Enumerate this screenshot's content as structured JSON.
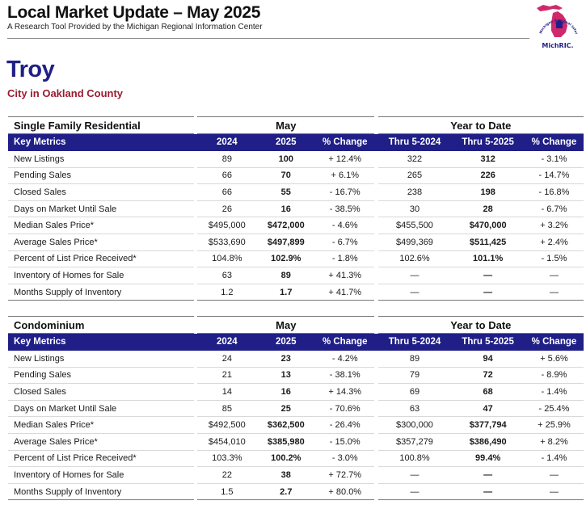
{
  "header": {
    "title": "Local Market Update – May 2025",
    "subtitle": "A Research Tool Provided by the Michigan Regional Information Center",
    "logo_text": "MichRIC.",
    "logo_arc_text": "Michigan Regional Information Center"
  },
  "location": {
    "city": "Troy",
    "county": "City in Oakland County"
  },
  "colors": {
    "header_bar": "#1f1f87",
    "county_text": "#9b1b30",
    "logo_state": "#d0296b"
  },
  "tables": [
    {
      "section": "Single Family Residential",
      "group_month": "May",
      "group_ytd": "Year to Date",
      "columns": [
        "Key Metrics",
        "2024",
        "2025",
        "% Change",
        "Thru 5-2024",
        "Thru 5-2025",
        "% Change"
      ],
      "rows": [
        [
          "New Listings",
          "89",
          "100",
          "+ 12.4%",
          "322",
          "312",
          "- 3.1%"
        ],
        [
          "Pending Sales",
          "66",
          "70",
          "+ 6.1%",
          "265",
          "226",
          "- 14.7%"
        ],
        [
          "Closed Sales",
          "66",
          "55",
          "- 16.7%",
          "238",
          "198",
          "- 16.8%"
        ],
        [
          "Days on Market Until Sale",
          "26",
          "16",
          "- 38.5%",
          "30",
          "28",
          "- 6.7%"
        ],
        [
          "Median Sales Price*",
          "$495,000",
          "$472,000",
          "- 4.6%",
          "$455,500",
          "$470,000",
          "+ 3.2%"
        ],
        [
          "Average Sales Price*",
          "$533,690",
          "$497,899",
          "- 6.7%",
          "$499,369",
          "$511,425",
          "+ 2.4%"
        ],
        [
          "Percent of List Price Received*",
          "104.8%",
          "102.9%",
          "- 1.8%",
          "102.6%",
          "101.1%",
          "- 1.5%"
        ],
        [
          "Inventory of Homes for Sale",
          "63",
          "89",
          "+ 41.3%",
          "—",
          "—",
          "—"
        ],
        [
          "Months Supply of Inventory",
          "1.2",
          "1.7",
          "+ 41.7%",
          "—",
          "—",
          "—"
        ]
      ]
    },
    {
      "section": "Condominium",
      "group_month": "May",
      "group_ytd": "Year to Date",
      "columns": [
        "Key Metrics",
        "2024",
        "2025",
        "% Change",
        "Thru 5-2024",
        "Thru 5-2025",
        "% Change"
      ],
      "rows": [
        [
          "New Listings",
          "24",
          "23",
          "- 4.2%",
          "89",
          "94",
          "+ 5.6%"
        ],
        [
          "Pending Sales",
          "21",
          "13",
          "- 38.1%",
          "79",
          "72",
          "- 8.9%"
        ],
        [
          "Closed Sales",
          "14",
          "16",
          "+ 14.3%",
          "69",
          "68",
          "- 1.4%"
        ],
        [
          "Days on Market Until Sale",
          "85",
          "25",
          "- 70.6%",
          "63",
          "47",
          "- 25.4%"
        ],
        [
          "Median Sales Price*",
          "$492,500",
          "$362,500",
          "- 26.4%",
          "$300,000",
          "$377,794",
          "+ 25.9%"
        ],
        [
          "Average Sales Price*",
          "$454,010",
          "$385,980",
          "- 15.0%",
          "$357,279",
          "$386,490",
          "+ 8.2%"
        ],
        [
          "Percent of List Price Received*",
          "103.3%",
          "100.2%",
          "- 3.0%",
          "100.8%",
          "99.4%",
          "- 1.4%"
        ],
        [
          "Inventory of Homes for Sale",
          "22",
          "38",
          "+ 72.7%",
          "—",
          "—",
          "—"
        ],
        [
          "Months Supply of Inventory",
          "1.5",
          "2.7",
          "+ 80.0%",
          "—",
          "—",
          "—"
        ]
      ]
    }
  ]
}
